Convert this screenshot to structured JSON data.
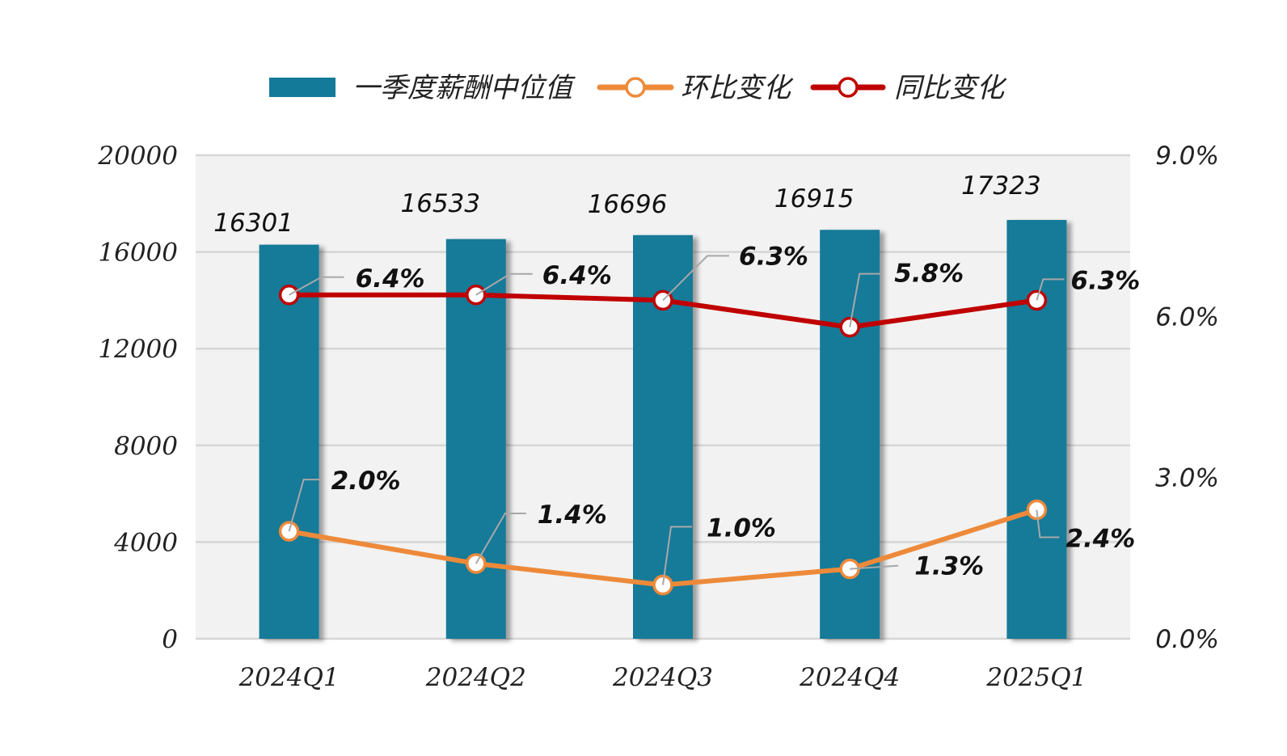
{
  "chart_data": {
    "type": "bar",
    "categories": [
      "2024Q1",
      "2024Q2",
      "2024Q3",
      "2024Q4",
      "2025Q1"
    ],
    "series": [
      {
        "name": "一季度薪酬中位值",
        "kind": "bar",
        "axis": "left",
        "color": "#137a99",
        "values": [
          16301,
          16533,
          16696,
          16915,
          17323
        ],
        "labels": [
          "16301",
          "16533",
          "16696",
          "16915",
          "17323"
        ]
      },
      {
        "name": "环比变化",
        "kind": "line",
        "axis": "right",
        "color": "#ed8a3a",
        "values": [
          2.0,
          1.4,
          1.0,
          1.3,
          2.4
        ],
        "labels": [
          "2.0%",
          "1.4%",
          "1.0%",
          "1.3%",
          "2.4%"
        ]
      },
      {
        "name": "同比变化",
        "kind": "line",
        "axis": "right",
        "color": "#c00000",
        "values": [
          6.4,
          6.4,
          6.3,
          5.8,
          6.3
        ],
        "labels": [
          "6.4%",
          "6.4%",
          "6.3%",
          "5.8%",
          "6.3%"
        ]
      }
    ],
    "ylim": [
      0,
      20000
    ],
    "yticks": [
      "0",
      "4000",
      "8000",
      "12000",
      "16000",
      "20000"
    ],
    "y2lim": [
      0,
      9
    ],
    "y2ticks": [
      "0.0%",
      "3.0%",
      "6.0%",
      "9.0%"
    ],
    "grid": true,
    "legend": "top-center"
  }
}
